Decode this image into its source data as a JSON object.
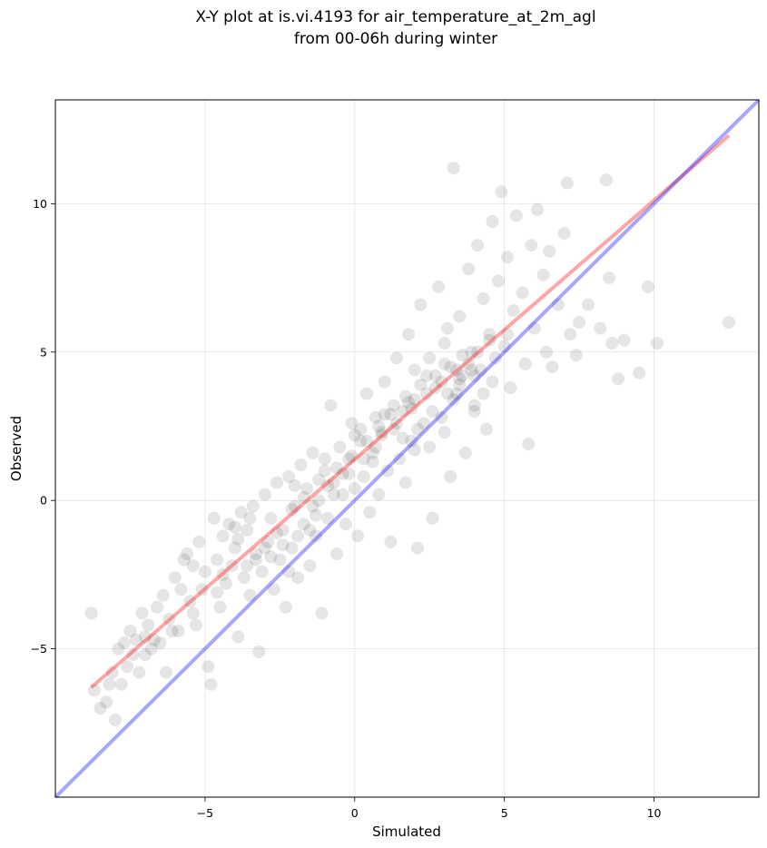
{
  "chart_data": {
    "type": "scatter",
    "title": "X-Y plot at is.vi.4193 for air_temperature_at_2m_agl",
    "subtitle": "from 00-06h during winter",
    "xlabel": "Simulated",
    "ylabel": "Observed",
    "xlim": [
      -10,
      13.5
    ],
    "ylim": [
      -10,
      13.5
    ],
    "xticks": [
      -5,
      0,
      5,
      10
    ],
    "yticks": [
      -5,
      0,
      5,
      10
    ],
    "xtick_labels": [
      "−5",
      "0",
      "5",
      "10"
    ],
    "ytick_labels": [
      "−5",
      "0",
      "5",
      "10"
    ],
    "grid": true,
    "legend": "none",
    "colors": {
      "points": "#000000",
      "fit_line": "#ff0000",
      "identity_line": "#0000ff"
    },
    "point_alpha": 0.1,
    "lines": [
      {
        "kind": "regression",
        "x": [
          -8.8,
          12.5
        ],
        "y": [
          -6.3,
          12.3
        ]
      },
      {
        "kind": "identity",
        "x": [
          -10,
          13.5
        ],
        "y": [
          -10,
          13.5
        ]
      }
    ],
    "series": [
      {
        "points": [
          [
            -8.8,
            -3.8
          ],
          [
            -8.7,
            -6.4
          ],
          [
            -8.5,
            -7.0
          ],
          [
            -8.3,
            -6.8
          ],
          [
            -8.1,
            -5.8
          ],
          [
            -8.0,
            -7.4
          ],
          [
            -7.9,
            -5.0
          ],
          [
            -7.8,
            -6.2
          ],
          [
            -7.7,
            -4.8
          ],
          [
            -7.6,
            -5.6
          ],
          [
            -7.5,
            -4.4
          ],
          [
            -7.4,
            -5.2
          ],
          [
            -7.2,
            -5.8
          ],
          [
            -7.1,
            -3.8
          ],
          [
            -7.0,
            -4.6
          ],
          [
            -6.9,
            -4.2
          ],
          [
            -6.8,
            -5.0
          ],
          [
            -6.6,
            -3.6
          ],
          [
            -6.5,
            -4.8
          ],
          [
            -6.4,
            -3.2
          ],
          [
            -6.3,
            -5.8
          ],
          [
            -6.2,
            -4.0
          ],
          [
            -6.0,
            -2.6
          ],
          [
            -5.9,
            -4.4
          ],
          [
            -5.8,
            -3.0
          ],
          [
            -5.6,
            -1.8
          ],
          [
            -5.5,
            -3.4
          ],
          [
            -5.4,
            -2.2
          ],
          [
            -5.3,
            -4.2
          ],
          [
            -5.2,
            -1.4
          ],
          [
            -5.1,
            -3.0
          ],
          [
            -5.0,
            -2.4
          ],
          [
            -4.9,
            -5.6
          ],
          [
            -4.8,
            -6.2
          ],
          [
            -4.7,
            -0.6
          ],
          [
            -4.6,
            -2.0
          ],
          [
            -4.5,
            -3.6
          ],
          [
            -4.4,
            -1.2
          ],
          [
            -4.3,
            -2.8
          ],
          [
            -4.2,
            -0.8
          ],
          [
            -4.1,
            -2.2
          ],
          [
            -4.0,
            -1.6
          ],
          [
            -3.9,
            -4.6
          ],
          [
            -3.8,
            -0.4
          ],
          [
            -3.7,
            -2.6
          ],
          [
            -3.6,
            -1.0
          ],
          [
            -3.5,
            -3.2
          ],
          [
            -3.4,
            -0.2
          ],
          [
            -3.3,
            -1.8
          ],
          [
            -3.2,
            -5.1
          ],
          [
            -3.1,
            -2.4
          ],
          [
            -3.0,
            0.2
          ],
          [
            -2.9,
            -1.4
          ],
          [
            -2.8,
            -0.6
          ],
          [
            -2.7,
            -3.0
          ],
          [
            -2.6,
            0.6
          ],
          [
            -2.5,
            -2.0
          ],
          [
            -2.4,
            -1.0
          ],
          [
            -2.3,
            -3.6
          ],
          [
            -2.2,
            0.8
          ],
          [
            -2.1,
            -1.6
          ],
          [
            -2.0,
            -0.2
          ],
          [
            -1.9,
            -2.6
          ],
          [
            -1.8,
            1.2
          ],
          [
            -1.7,
            -0.8
          ],
          [
            -1.6,
            0.4
          ],
          [
            -1.5,
            -2.2
          ],
          [
            -1.4,
            1.6
          ],
          [
            -1.3,
            -1.2
          ],
          [
            -1.2,
            0.0
          ],
          [
            -1.1,
            -3.8
          ],
          [
            -1.0,
            1.0
          ],
          [
            -0.9,
            -0.6
          ],
          [
            -0.8,
            3.2
          ],
          [
            -0.7,
            0.6
          ],
          [
            -0.6,
            -1.8
          ],
          [
            -0.5,
            1.8
          ],
          [
            -0.4,
            0.2
          ],
          [
            -0.3,
            -0.8
          ],
          [
            -0.2,
            1.4
          ],
          [
            -0.1,
            2.6
          ],
          [
            0.0,
            0.4
          ],
          [
            0.1,
            -1.2
          ],
          [
            0.2,
            2.0
          ],
          [
            0.3,
            0.8
          ],
          [
            0.4,
            3.6
          ],
          [
            0.5,
            -0.4
          ],
          [
            0.6,
            1.6
          ],
          [
            0.7,
            2.8
          ],
          [
            0.8,
            0.2
          ],
          [
            0.9,
            2.2
          ],
          [
            1.0,
            4.0
          ],
          [
            1.1,
            1.0
          ],
          [
            1.2,
            -1.4
          ],
          [
            1.3,
            2.4
          ],
          [
            1.4,
            4.8
          ],
          [
            1.5,
            1.4
          ],
          [
            1.6,
            3.0
          ],
          [
            1.7,
            0.6
          ],
          [
            1.8,
            5.6
          ],
          [
            1.9,
            2.0
          ],
          [
            2.0,
            3.4
          ],
          [
            2.1,
            -1.6
          ],
          [
            2.2,
            6.6
          ],
          [
            2.3,
            2.6
          ],
          [
            2.4,
            4.2
          ],
          [
            2.5,
            1.8
          ],
          [
            2.6,
            -0.6
          ],
          [
            2.7,
            3.8
          ],
          [
            2.8,
            7.2
          ],
          [
            2.9,
            2.8
          ],
          [
            3.0,
            4.6
          ],
          [
            3.1,
            5.8
          ],
          [
            3.2,
            0.8
          ],
          [
            3.3,
            11.2
          ],
          [
            3.4,
            3.6
          ],
          [
            3.5,
            6.2
          ],
          [
            3.6,
            4.2
          ],
          [
            3.7,
            1.6
          ],
          [
            3.8,
            7.8
          ],
          [
            3.9,
            5.0
          ],
          [
            4.0,
            3.2
          ],
          [
            4.1,
            8.6
          ],
          [
            4.2,
            4.4
          ],
          [
            4.3,
            6.8
          ],
          [
            4.4,
            2.4
          ],
          [
            4.5,
            5.6
          ],
          [
            4.6,
            9.4
          ],
          [
            4.7,
            4.8
          ],
          [
            4.8,
            7.4
          ],
          [
            4.9,
            10.4
          ],
          [
            5.0,
            5.2
          ],
          [
            5.1,
            8.2
          ],
          [
            5.2,
            3.8
          ],
          [
            5.3,
            6.4
          ],
          [
            5.4,
            9.6
          ],
          [
            5.6,
            7.0
          ],
          [
            5.7,
            4.6
          ],
          [
            5.8,
            1.9
          ],
          [
            5.9,
            8.6
          ],
          [
            6.0,
            5.8
          ],
          [
            6.1,
            9.8
          ],
          [
            6.3,
            7.6
          ],
          [
            6.4,
            5.0
          ],
          [
            6.5,
            8.4
          ],
          [
            6.6,
            4.5
          ],
          [
            6.8,
            6.6
          ],
          [
            7.0,
            9.0
          ],
          [
            7.1,
            10.7
          ],
          [
            7.2,
            5.6
          ],
          [
            7.4,
            4.9
          ],
          [
            7.5,
            6.0
          ],
          [
            7.8,
            6.6
          ],
          [
            8.2,
            5.8
          ],
          [
            8.4,
            10.8
          ],
          [
            8.5,
            7.5
          ],
          [
            8.6,
            5.3
          ],
          [
            8.8,
            4.1
          ],
          [
            9.0,
            5.4
          ],
          [
            9.5,
            4.3
          ],
          [
            9.8,
            7.2
          ],
          [
            10.1,
            5.3
          ],
          [
            12.5,
            6.0
          ],
          [
            -8.2,
            -6.2
          ],
          [
            -7.3,
            -4.7
          ],
          [
            -6.7,
            -4.7
          ],
          [
            -5.7,
            -2.0
          ],
          [
            -4.4,
            -2.5
          ],
          [
            -3.9,
            -1.3
          ],
          [
            -3.3,
            -2.0
          ],
          [
            -2.6,
            -1.1
          ],
          [
            -2.1,
            -0.3
          ],
          [
            -1.7,
            0.1
          ],
          [
            -1.2,
            0.7
          ],
          [
            -0.6,
            1.1
          ],
          [
            -0.1,
            1.5
          ],
          [
            0.4,
            2.0
          ],
          [
            0.9,
            2.3
          ],
          [
            1.4,
            2.6
          ],
          [
            1.9,
            3.1
          ],
          [
            2.4,
            3.6
          ],
          [
            2.9,
            4.0
          ],
          [
            3.4,
            4.4
          ],
          [
            3.8,
            4.6
          ],
          [
            4.1,
            5.0
          ],
          [
            4.5,
            5.4
          ],
          [
            -3.0,
            -1.6
          ],
          [
            -2.2,
            -2.4
          ],
          [
            -1.5,
            -1.0
          ],
          [
            -0.9,
            0.5
          ],
          [
            0.2,
            2.4
          ],
          [
            0.7,
            1.8
          ],
          [
            1.2,
            2.9
          ],
          [
            1.8,
            3.3
          ],
          [
            2.2,
            3.9
          ],
          [
            2.7,
            4.2
          ],
          [
            3.2,
            4.5
          ],
          [
            3.6,
            4.9
          ],
          [
            4.0,
            4.2
          ],
          [
            3.3,
            3.4
          ],
          [
            -2.4,
            -1.5
          ],
          [
            -1.9,
            -1.2
          ],
          [
            -1.3,
            -0.5
          ],
          [
            -0.7,
            0.2
          ],
          [
            -0.2,
            0.9
          ],
          [
            0.3,
            1.4
          ],
          [
            0.8,
            2.5
          ],
          [
            1.3,
            3.2
          ],
          [
            1.7,
            3.5
          ],
          [
            2.1,
            2.4
          ],
          [
            2.6,
            3.0
          ],
          [
            3.1,
            3.6
          ],
          [
            3.5,
            3.9
          ],
          [
            3.9,
            4.4
          ],
          [
            4.3,
            3.6
          ],
          [
            2.0,
            4.4
          ],
          [
            2.5,
            4.8
          ],
          [
            3.0,
            5.3
          ],
          [
            3.5,
            4.1
          ],
          [
            1.6,
            2.1
          ],
          [
            0.6,
            1.3
          ],
          [
            -0.4,
            0.9
          ],
          [
            -1.4,
            -0.2
          ],
          [
            -2.8,
            -1.9
          ],
          [
            -3.6,
            -2.2
          ],
          [
            -4.6,
            -3.1
          ],
          [
            -5.4,
            -3.8
          ],
          [
            -6.1,
            -4.4
          ],
          [
            -7.0,
            -5.2
          ],
          [
            -4.0,
            -0.9
          ],
          [
            -3.5,
            -0.6
          ],
          [
            -2.0,
            0.5
          ],
          [
            -1.0,
            1.4
          ],
          [
            0.0,
            2.2
          ],
          [
            1.0,
            2.9
          ],
          [
            2.0,
            1.7
          ],
          [
            3.0,
            2.3
          ],
          [
            4.0,
            3.0
          ],
          [
            4.6,
            4.0
          ],
          [
            5.1,
            5.6
          ]
        ]
      }
    ]
  }
}
